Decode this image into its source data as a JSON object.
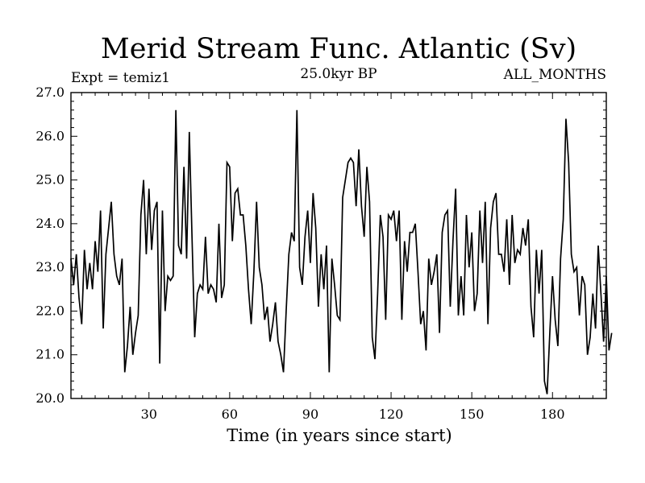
{
  "chart_data": {
    "type": "line",
    "title": "Merid Stream Func. Atlantic (Sv)",
    "subtitle": "25.0kyr BP",
    "left_label": "Expt = temiz1",
    "right_label": "ALL_MONTHS",
    "xlabel": "Time (in years since start)",
    "ylabel": "",
    "xlim": [
      1,
      200
    ],
    "ylim": [
      20.0,
      27.0
    ],
    "x_ticks": [
      30,
      60,
      90,
      120,
      150,
      180
    ],
    "x_tick_labels": [
      "30",
      "60",
      "90",
      "120",
      "150",
      "180"
    ],
    "y_ticks": [
      20,
      21,
      22,
      23,
      24,
      25,
      26,
      27
    ],
    "y_tick_labels": [
      "20.0",
      "21.0",
      "22.0",
      "23.0",
      "24.0",
      "25.0",
      "26.0",
      "27.0"
    ],
    "color": "#000000",
    "series": [
      {
        "name": "Atlantic meridional stream function",
        "x_start": 1,
        "x_step": 1,
        "values": [
          23.2,
          22.6,
          23.3,
          22.3,
          21.7,
          23.4,
          22.5,
          23.1,
          22.5,
          23.6,
          22.9,
          24.3,
          21.6,
          23.3,
          23.9,
          24.5,
          23.3,
          22.8,
          22.6,
          23.2,
          20.6,
          21.2,
          22.1,
          21.0,
          21.5,
          21.9,
          24.2,
          25.0,
          23.3,
          24.8,
          23.4,
          24.3,
          24.5,
          20.8,
          24.3,
          22.0,
          22.8,
          22.7,
          22.8,
          26.6,
          23.5,
          23.3,
          25.3,
          23.2,
          26.1,
          23.7,
          21.4,
          22.4,
          22.6,
          22.5,
          23.7,
          22.4,
          22.6,
          22.5,
          22.2,
          24.0,
          22.3,
          22.6,
          25.4,
          25.3,
          23.6,
          24.7,
          24.8,
          24.2,
          24.2,
          23.5,
          22.5,
          21.7,
          22.9,
          24.5,
          23.0,
          22.6,
          21.8,
          22.1,
          21.3,
          21.7,
          22.2,
          21.3,
          21.0,
          20.6,
          22.0,
          23.3,
          23.8,
          23.6,
          26.6,
          23.0,
          22.6,
          23.7,
          24.3,
          23.1,
          24.7,
          23.9,
          22.1,
          23.3,
          22.5,
          23.5,
          20.6,
          23.2,
          22.6,
          21.9,
          21.8,
          24.6,
          25.0,
          25.4,
          25.5,
          25.4,
          24.4,
          25.7,
          24.4,
          23.7,
          25.3,
          24.5,
          21.4,
          20.9,
          22.4,
          24.2,
          23.7,
          21.8,
          24.2,
          24.1,
          24.3,
          23.6,
          24.3,
          21.8,
          23.6,
          22.9,
          23.8,
          23.8,
          24.0,
          22.9,
          21.7,
          22.0,
          21.1,
          23.2,
          22.6,
          22.9,
          23.3,
          21.5,
          23.8,
          24.2,
          24.3,
          22.1,
          23.6,
          24.8,
          21.9,
          22.8,
          21.9,
          24.2,
          23.0,
          23.8,
          22.0,
          22.4,
          24.3,
          23.1,
          24.5,
          21.7,
          23.9,
          24.5,
          24.7,
          23.3,
          23.3,
          22.9,
          24.1,
          22.6,
          24.2,
          23.1,
          23.4,
          23.3,
          23.9,
          23.5,
          24.1,
          22.1,
          21.4,
          23.4,
          22.4,
          23.4,
          20.4,
          20.1,
          21.5,
          22.8,
          21.8,
          21.2,
          23.2,
          24.1,
          26.4,
          25.4,
          23.3,
          22.9,
          23.0,
          21.9,
          22.8,
          22.6,
          21.0,
          21.4,
          22.4,
          21.6,
          23.5,
          22.4,
          21.3,
          22.8,
          21.1,
          21.5
        ]
      }
    ]
  }
}
